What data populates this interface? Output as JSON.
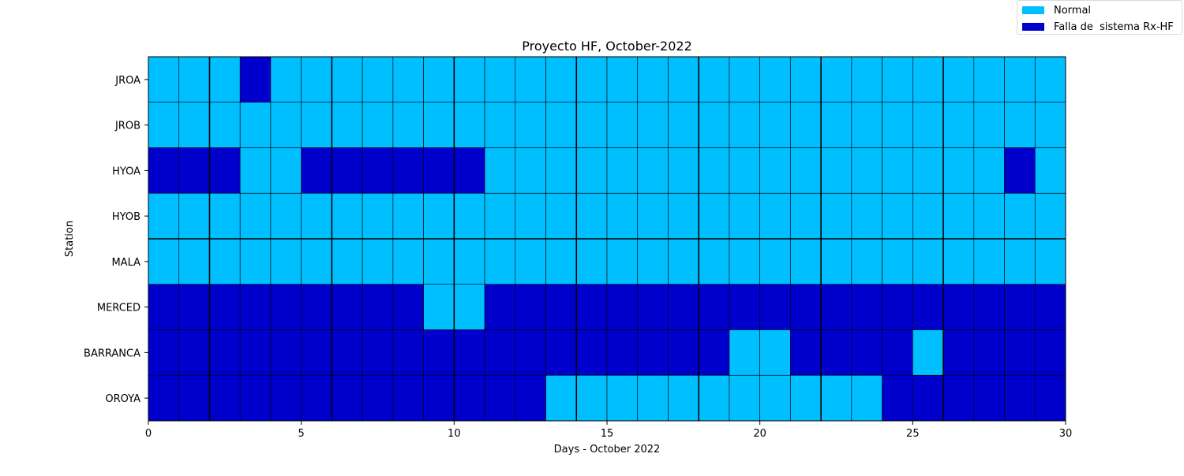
{
  "chart_data": {
    "type": "heatmap",
    "title": "Proyecto HF, October-2022",
    "xlabel": "Days - October 2022",
    "ylabel": "Station",
    "xlim": [
      0,
      30
    ],
    "xticks": [
      0,
      5,
      10,
      15,
      20,
      25,
      30
    ],
    "major_gridlines_x": [
      2,
      6,
      10,
      14,
      18,
      22,
      26
    ],
    "major_gridlines_y_after_row": [
      3
    ],
    "stations": [
      "JROA",
      "JROB",
      "HYOA",
      "HYOB",
      "MALA",
      "MERCED",
      "BARRANCA",
      "OROYA"
    ],
    "days": [
      0,
      1,
      2,
      3,
      4,
      5,
      6,
      7,
      8,
      9,
      10,
      11,
      12,
      13,
      14,
      15,
      16,
      17,
      18,
      19,
      20,
      21,
      22,
      23,
      24,
      25,
      26,
      27,
      28,
      29
    ],
    "legend": [
      {
        "label": "Normal",
        "code": 0,
        "color": "#00bfff"
      },
      {
        "label": "Falla de  sistema Rx-HF",
        "code": 1,
        "color": "#0000cd"
      }
    ],
    "status_matrix": [
      [
        0,
        0,
        0,
        1,
        0,
        0,
        0,
        0,
        0,
        0,
        0,
        0,
        0,
        0,
        0,
        0,
        0,
        0,
        0,
        0,
        0,
        0,
        0,
        0,
        0,
        0,
        0,
        0,
        0,
        0
      ],
      [
        0,
        0,
        0,
        0,
        0,
        0,
        0,
        0,
        0,
        0,
        0,
        0,
        0,
        0,
        0,
        0,
        0,
        0,
        0,
        0,
        0,
        0,
        0,
        0,
        0,
        0,
        0,
        0,
        0,
        0
      ],
      [
        1,
        1,
        1,
        0,
        0,
        1,
        1,
        1,
        1,
        1,
        1,
        0,
        0,
        0,
        0,
        0,
        0,
        0,
        0,
        0,
        0,
        0,
        0,
        0,
        0,
        0,
        0,
        0,
        1,
        0
      ],
      [
        0,
        0,
        0,
        0,
        0,
        0,
        0,
        0,
        0,
        0,
        0,
        0,
        0,
        0,
        0,
        0,
        0,
        0,
        0,
        0,
        0,
        0,
        0,
        0,
        0,
        0,
        0,
        0,
        0,
        0
      ],
      [
        0,
        0,
        0,
        0,
        0,
        0,
        0,
        0,
        0,
        0,
        0,
        0,
        0,
        0,
        0,
        0,
        0,
        0,
        0,
        0,
        0,
        0,
        0,
        0,
        0,
        0,
        0,
        0,
        0,
        0
      ],
      [
        1,
        1,
        1,
        1,
        1,
        1,
        1,
        1,
        1,
        0,
        0,
        1,
        1,
        1,
        1,
        1,
        1,
        1,
        1,
        1,
        1,
        1,
        1,
        1,
        1,
        1,
        1,
        1,
        1,
        1
      ],
      [
        1,
        1,
        1,
        1,
        1,
        1,
        1,
        1,
        1,
        1,
        1,
        1,
        1,
        1,
        1,
        1,
        1,
        1,
        1,
        0,
        0,
        1,
        1,
        1,
        1,
        0,
        1,
        1,
        1,
        1
      ],
      [
        1,
        1,
        1,
        1,
        1,
        1,
        1,
        1,
        1,
        1,
        1,
        1,
        1,
        0,
        0,
        0,
        0,
        0,
        0,
        0,
        0,
        0,
        0,
        0,
        1,
        1,
        1,
        1,
        1,
        1
      ]
    ]
  }
}
